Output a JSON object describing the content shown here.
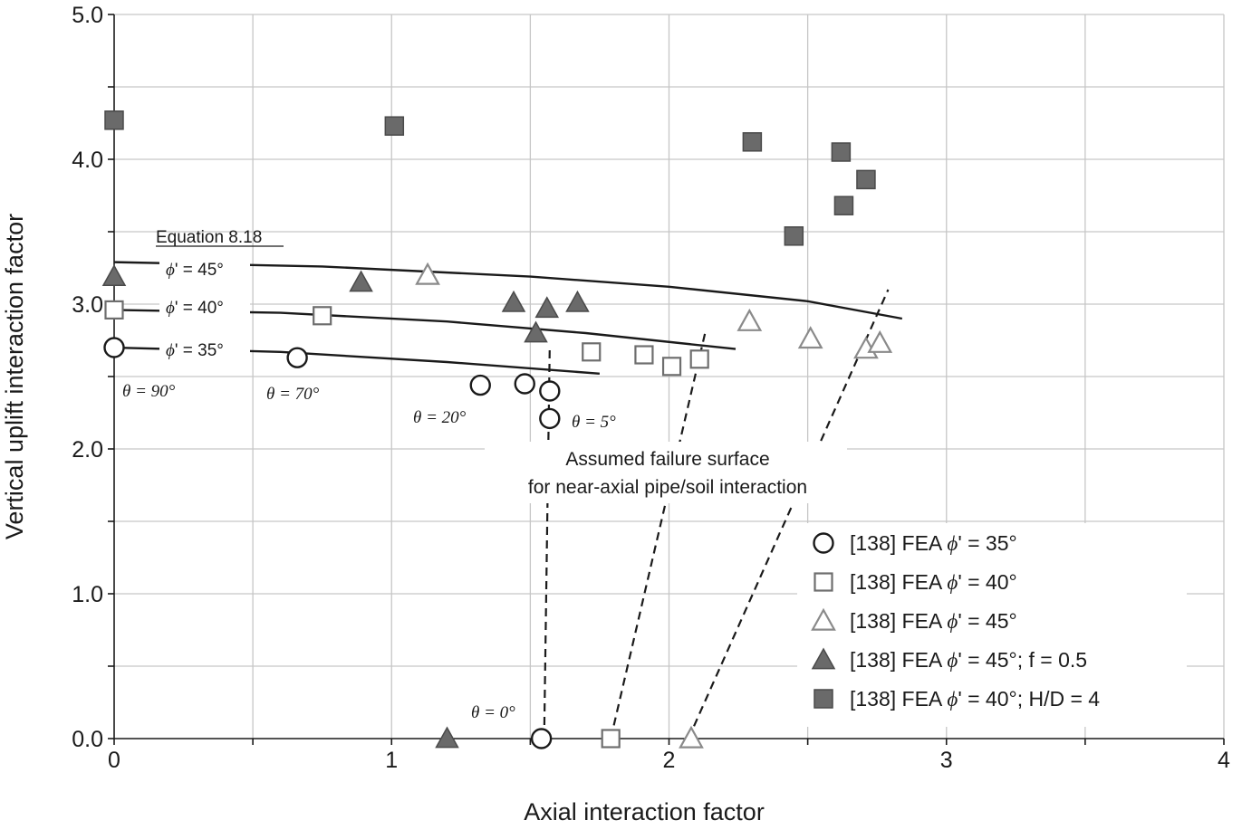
{
  "chart_data": {
    "type": "scatter",
    "xlabel": "Axial interaction factor",
    "ylabel": "Vertical uplift interaction factor",
    "xlim": [
      0,
      4
    ],
    "ylim": [
      0,
      5
    ],
    "xticks": [
      "0",
      "1",
      "2",
      "3",
      "4"
    ],
    "yticks": [
      "0.0",
      "1.0",
      "2.0",
      "3.0",
      "4.0",
      "5.0"
    ],
    "grid": true,
    "legend_position": "bottom-right",
    "series": [
      {
        "name": "[138] FEA ϕ' = 35°",
        "label_prefix": "[138] FEA ",
        "label_phi": "ϕ",
        "label_suffix": "' = 35°",
        "marker": "circle-open",
        "color": "#1a1a1a",
        "points": [
          [
            0,
            2.7
          ],
          [
            0.66,
            2.63
          ],
          [
            1.32,
            2.44
          ],
          [
            1.48,
            2.45
          ],
          [
            1.57,
            2.4
          ],
          [
            1.57,
            2.21
          ],
          [
            1.54,
            0.0
          ]
        ]
      },
      {
        "name": "[138] FEA ϕ' = 40°",
        "label_prefix": "[138] FEA ",
        "label_phi": "ϕ",
        "label_suffix": "' = 40°",
        "marker": "square-open",
        "color": "#6e6e6e",
        "points": [
          [
            0,
            2.96
          ],
          [
            0.75,
            2.92
          ],
          [
            1.72,
            2.67
          ],
          [
            1.91,
            2.65
          ],
          [
            2.01,
            2.57
          ],
          [
            2.11,
            2.62
          ],
          [
            1.79,
            0.0
          ]
        ]
      },
      {
        "name": "[138] FEA ϕ' = 45°",
        "label_prefix": "[138] FEA ",
        "label_phi": "ϕ",
        "label_suffix": "' = 45°",
        "marker": "triangle-open",
        "color": "#8a8a8a",
        "points": [
          [
            1.13,
            3.2
          ],
          [
            2.29,
            2.88
          ],
          [
            2.51,
            2.76
          ],
          [
            2.71,
            2.69
          ],
          [
            2.76,
            2.73
          ],
          [
            2.08,
            0.0
          ]
        ]
      },
      {
        "name": "[138] FEA ϕ' = 45°; f = 0.5",
        "label_prefix": "[138] FEA ",
        "label_phi": "ϕ",
        "label_suffix": "' = 45°; f = 0.5",
        "marker": "triangle-filled",
        "color": "#6a6a6a",
        "points": [
          [
            0,
            3.19
          ],
          [
            0.89,
            3.15
          ],
          [
            1.44,
            3.01
          ],
          [
            1.56,
            2.97
          ],
          [
            1.67,
            3.01
          ],
          [
            1.52,
            2.8
          ],
          [
            1.2,
            0.0
          ]
        ]
      },
      {
        "name": "[138] FEA ϕ' = 40°; H/D = 4",
        "label_prefix": "[138] FEA ",
        "label_phi": "ϕ",
        "label_suffix": "' = 40°; H/D = 4",
        "marker": "square-filled",
        "color": "#6a6a6a",
        "points": [
          [
            0,
            4.27
          ],
          [
            1.01,
            4.23
          ],
          [
            2.3,
            4.12
          ],
          [
            2.45,
            3.47
          ],
          [
            2.62,
            4.05
          ],
          [
            2.63,
            3.68
          ],
          [
            2.71,
            3.86
          ]
        ]
      }
    ],
    "curves": [
      {
        "name": "ϕ' = 45°",
        "points": [
          [
            0,
            3.29
          ],
          [
            0.75,
            3.26
          ],
          [
            1.5,
            3.19
          ],
          [
            2.0,
            3.12
          ],
          [
            2.5,
            3.02
          ],
          [
            2.84,
            2.9
          ]
        ]
      },
      {
        "name": "ϕ' = 40°",
        "points": [
          [
            0,
            2.96
          ],
          [
            0.6,
            2.94
          ],
          [
            1.2,
            2.88
          ],
          [
            1.7,
            2.8
          ],
          [
            2.24,
            2.69
          ]
        ]
      },
      {
        "name": "ϕ' = 35°",
        "points": [
          [
            0,
            2.7
          ],
          [
            0.6,
            2.67
          ],
          [
            1.2,
            2.6
          ],
          [
            1.75,
            2.52
          ]
        ]
      }
    ],
    "failure_lines": [
      [
        [
          1.55,
          0.0
        ],
        [
          1.57,
          2.7
        ]
      ],
      [
        [
          1.79,
          0.0
        ],
        [
          2.13,
          2.8
        ]
      ],
      [
        [
          2.07,
          0.0
        ],
        [
          2.79,
          3.1
        ]
      ]
    ],
    "equation_label": "Equation 8.18",
    "curve_labels": [
      {
        "phi": "ϕ",
        "text": "' = 45°"
      },
      {
        "phi": "ϕ",
        "text": "' = 40°"
      },
      {
        "phi": "ϕ",
        "text": "' = 35°"
      }
    ],
    "theta_labels": [
      {
        "sym": "θ",
        "text": " = 90°"
      },
      {
        "sym": "θ",
        "text": " = 70°"
      },
      {
        "sym": "θ",
        "text": " = 20°"
      },
      {
        "sym": "θ",
        "text": " = 5°"
      },
      {
        "sym": "θ",
        "text": " = 0°"
      }
    ],
    "note_lines": [
      "Assumed failure surface",
      "for near-axial pipe/soil interaction"
    ]
  }
}
